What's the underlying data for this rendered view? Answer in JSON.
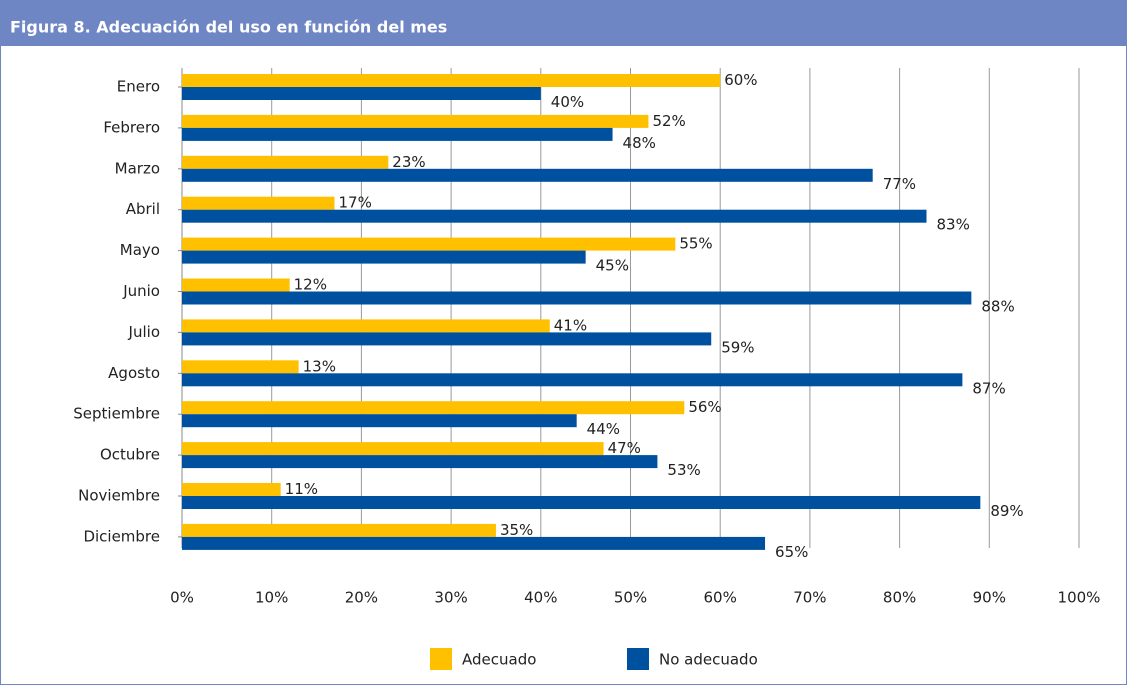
{
  "chart_data": {
    "type": "bar",
    "orientation": "horizontal",
    "title": "Figura 8. Adecuación del uso en función del mes",
    "categories": [
      "Enero",
      "Febrero",
      "Marzo",
      "Abril",
      "Mayo",
      "Junio",
      "Julio",
      "Agosto",
      "Septiembre",
      "Octubre",
      "Noviembre",
      "Diciembre"
    ],
    "series": [
      {
        "name": "Adecuado",
        "color": "#ffc000",
        "values": [
          60,
          52,
          23,
          17,
          55,
          12,
          41,
          13,
          56,
          47,
          11,
          35
        ],
        "value_labels": [
          "60%",
          "52%",
          "23%",
          "17%",
          "55%",
          "12%",
          "41%",
          "13%",
          "56%",
          "47%",
          "11%",
          "35%"
        ]
      },
      {
        "name": "No adecuado",
        "color": "#0050a0",
        "values": [
          40,
          48,
          77,
          83,
          45,
          88,
          59,
          87,
          44,
          53,
          89,
          65
        ],
        "value_labels": [
          "40%",
          "48%",
          "77%",
          "83%",
          "45%",
          "88%",
          "59%",
          "87%",
          "44%",
          "53%",
          "89%",
          "65%"
        ]
      }
    ],
    "xlim": [
      0,
      100
    ],
    "xticks": [
      {
        "value": 0,
        "label": "0%"
      },
      {
        "value": 10,
        "label": "10%"
      },
      {
        "value": 20,
        "label": "20%"
      },
      {
        "value": 30,
        "label": "30%"
      },
      {
        "value": 40,
        "label": "40%"
      },
      {
        "value": 50,
        "label": "50%"
      },
      {
        "value": 60,
        "label": "60%"
      },
      {
        "value": 70,
        "label": "70%"
      },
      {
        "value": 80,
        "label": "80%"
      },
      {
        "value": 90,
        "label": "90%"
      },
      {
        "value": 100,
        "label": "100%"
      }
    ],
    "grid": true,
    "legend": "bottom"
  }
}
